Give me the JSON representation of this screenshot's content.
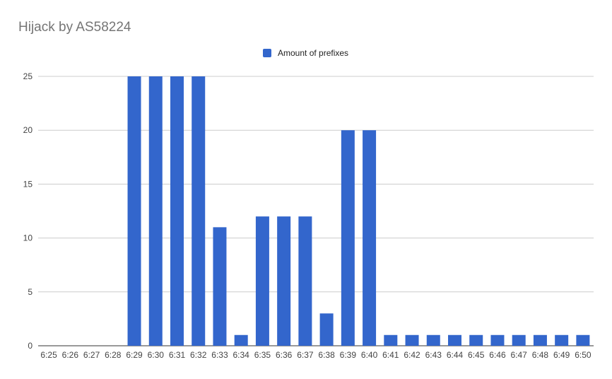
{
  "chart_data": {
    "type": "bar",
    "title": "Hijack by AS58224",
    "xlabel": "",
    "ylabel": "",
    "ylim": [
      0,
      25
    ],
    "yticks": [
      0,
      5,
      10,
      15,
      20,
      25
    ],
    "grid": true,
    "legend_position": "top-center",
    "categories": [
      "6:25",
      "6:26",
      "6:27",
      "6:28",
      "6:29",
      "6:30",
      "6:31",
      "6:32",
      "6:33",
      "6:34",
      "6:35",
      "6:36",
      "6:37",
      "6:38",
      "6:39",
      "6:40",
      "6:41",
      "6:42",
      "6:43",
      "6:44",
      "6:45",
      "6:46",
      "6:47",
      "6:48",
      "6:49",
      "6:50"
    ],
    "series": [
      {
        "name": "Amount of prefixes",
        "values": [
          0,
          0,
          0,
          0,
          25,
          25,
          25,
          25,
          11,
          1,
          12,
          12,
          12,
          3,
          20,
          20,
          1,
          1,
          1,
          1,
          1,
          1,
          1,
          1,
          1,
          1
        ]
      }
    ]
  },
  "colors": {
    "bar": "#3366cc",
    "grid": "#cccccc",
    "baseline": "#333333"
  }
}
